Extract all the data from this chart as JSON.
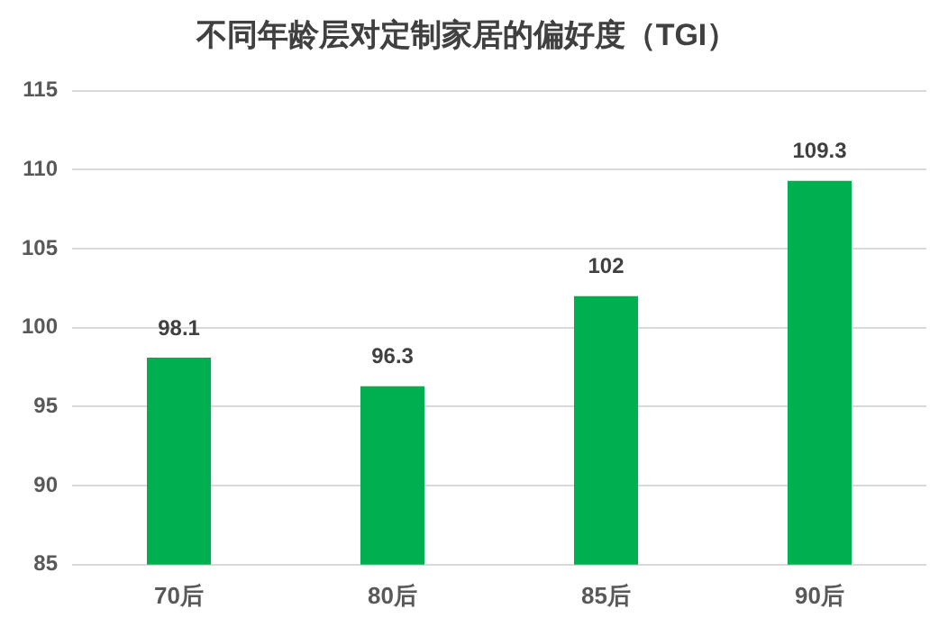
{
  "chart_data": {
    "type": "bar",
    "title": "不同年龄层对定制家居的偏好度（TGI）",
    "categories": [
      "70后",
      "80后",
      "85后",
      "90后"
    ],
    "values": [
      98.1,
      96.3,
      102,
      109.3
    ],
    "color": "#00b050",
    "ylim": [
      85,
      115
    ],
    "yticks": [
      85,
      90,
      95,
      100,
      105,
      110,
      115
    ],
    "grid": "y",
    "data_labels": true,
    "legend": false
  }
}
